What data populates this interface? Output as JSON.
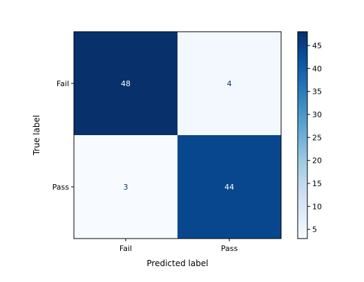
{
  "chart_data": {
    "type": "heatmap",
    "xlabel": "Predicted label",
    "ylabel": "True label",
    "x_categories": [
      "Fail",
      "Pass"
    ],
    "y_categories": [
      "Fail",
      "Pass"
    ],
    "values": [
      [
        48,
        4
      ],
      [
        3,
        44
      ]
    ],
    "colormap": "Blues",
    "colorbar": {
      "min": 3,
      "max": 48,
      "ticks": [
        5,
        10,
        15,
        20,
        25,
        30,
        35,
        40,
        45
      ]
    },
    "colors": {
      "low": "#f7fbff",
      "high": "#08306b",
      "text_on_dark": "#ffffff",
      "text_on_light": "#08306b"
    }
  }
}
